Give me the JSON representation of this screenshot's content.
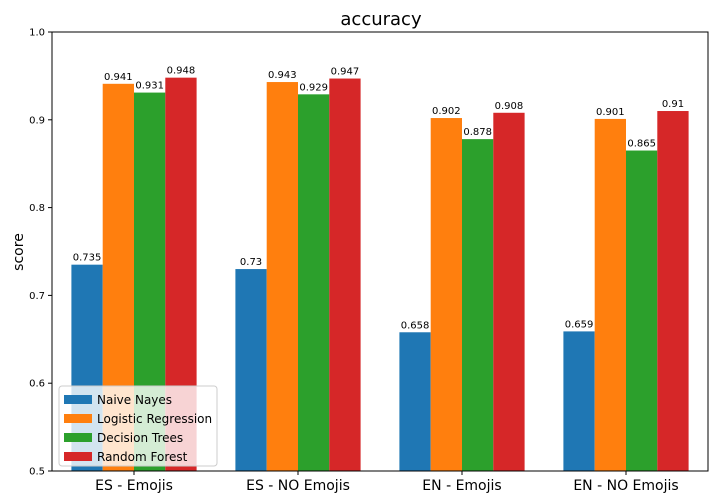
{
  "chart_data": {
    "type": "bar",
    "title": "accuracy",
    "xlabel": "",
    "ylabel": "score",
    "ylim": [
      0.5,
      1.0
    ],
    "yticks": [
      "0.5",
      "0.6",
      "0.7",
      "0.8",
      "0.9",
      "1.0"
    ],
    "categories": [
      "ES - Emojis",
      "ES - NO Emojis",
      "EN - Emojis",
      "EN - NO Emojis"
    ],
    "series": [
      {
        "name": "Naive Nayes",
        "color": "#1f77b4",
        "values": [
          0.735,
          0.73,
          0.658,
          0.659
        ],
        "labels": [
          "0.735",
          "0.73",
          "0.658",
          "0.659"
        ]
      },
      {
        "name": "Logistic Regression",
        "color": "#ff7f0e",
        "values": [
          0.941,
          0.943,
          0.902,
          0.901
        ],
        "labels": [
          "0.941",
          "0.943",
          "0.902",
          "0.901"
        ]
      },
      {
        "name": "Decision Trees",
        "color": "#2ca02c",
        "values": [
          0.931,
          0.929,
          0.878,
          0.865
        ],
        "labels": [
          "0.931",
          "0.929",
          "0.878",
          "0.865"
        ]
      },
      {
        "name": "Random Forest",
        "color": "#d62728",
        "values": [
          0.948,
          0.947,
          0.908,
          0.91
        ],
        "labels": [
          "0.948",
          "0.947",
          "0.908",
          "0.91"
        ]
      }
    ],
    "legend": "bottom-left",
    "grid": false
  }
}
